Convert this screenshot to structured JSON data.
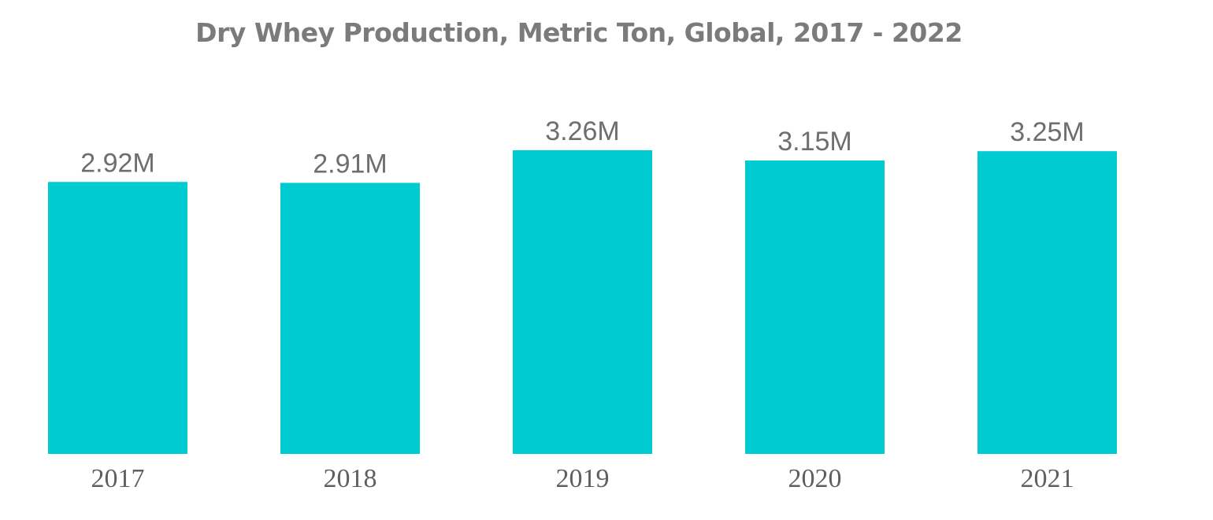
{
  "chart_data": {
    "type": "bar",
    "title": "Dry Whey Production, Metric Ton, Global, 2017 - 2022",
    "xlabel": "",
    "ylabel": "",
    "categories": [
      "2017",
      "2018",
      "2019",
      "2020",
      "2021"
    ],
    "values": [
      2.92,
      2.91,
      3.26,
      3.15,
      3.25
    ],
    "data_labels": [
      "2.92M",
      "2.91M",
      "3.26M",
      "3.15M",
      "3.25M"
    ],
    "unit": "M",
    "ylim": [
      0,
      3.26
    ],
    "grid": false,
    "legend": "none",
    "bar_color": "#00cbd1"
  }
}
